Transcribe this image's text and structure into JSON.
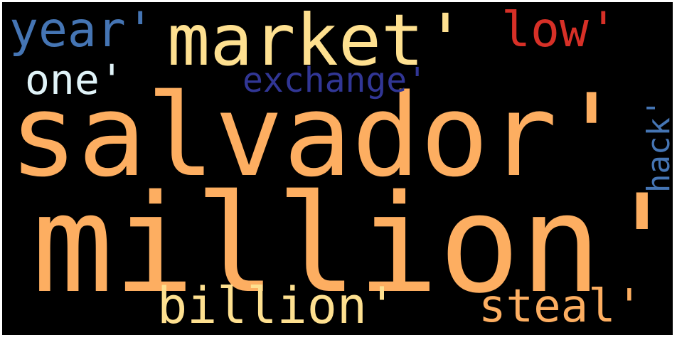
{
  "words": [
    {
      "text": "salvador'",
      "color": "#fdae61"
    },
    {
      "text": "million'",
      "color": "#fdae61"
    },
    {
      "text": "market'",
      "color": "#fee090"
    },
    {
      "text": "year'",
      "color": "#4575b4"
    },
    {
      "text": "low'",
      "color": "#d73027"
    },
    {
      "text": "one'",
      "color": "#e0f3f8"
    },
    {
      "text": "exchange'",
      "color": "#313695"
    },
    {
      "text": "billion'",
      "color": "#fee090"
    },
    {
      "text": "steal'",
      "color": "#fdae61"
    },
    {
      "text": "hack'",
      "color": "#4575b4"
    }
  ]
}
